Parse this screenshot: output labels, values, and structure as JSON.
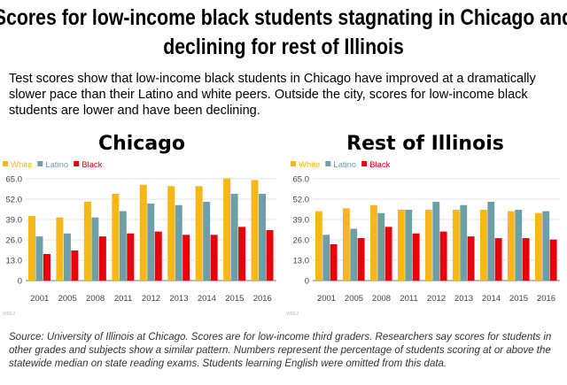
{
  "title": "Scores for low-income black students stagnating in Chicago and declining for rest of Illinois",
  "subtitle": "Test scores show that low-income black students in Chicago have improved at a dramatically slower pace than their Latino and white peers. Outside the city, scores for low-income black students are lower and have been declining.",
  "source": "Source: University of Illinois at Chicago. Scores are for low-income third graders. Researchers say scores for students in other grades and subjects show a similar pattern. Numbers represent the percentage of students scoring at or above the statewide median on state reading exams. Students learning English were omitted from this data.",
  "chart_data": [
    {
      "type": "bar",
      "title": "Chicago",
      "credit": "WBEZ",
      "categories": [
        "2001",
        "2005",
        "2008",
        "2011",
        "2012",
        "2013",
        "2014",
        "2015",
        "2016"
      ],
      "ylim": [
        0,
        65
      ],
      "yticks": [
        "0",
        "13.0",
        "26.0",
        "39.0",
        "52.0",
        "65.0"
      ],
      "grid": true,
      "legend": "top-left",
      "series": [
        {
          "name": "White",
          "color": "#f7b718",
          "values": [
            41.2,
            40.3,
            50.3,
            55.4,
            61.2,
            60.3,
            60.3,
            65.3,
            64.2
          ]
        },
        {
          "name": "Latino",
          "color": "#6e9fa6",
          "values": [
            28.2,
            30.1,
            40.3,
            44.3,
            49.2,
            48.2,
            50.3,
            55.4,
            55.4
          ]
        },
        {
          "name": "Black",
          "color": "#e8000b",
          "values": [
            17.0,
            19.2,
            28.2,
            30.1,
            31.3,
            29.2,
            29.2,
            34.3,
            32.2
          ]
        }
      ]
    },
    {
      "type": "bar",
      "title": "Rest of Illinois",
      "credit": "WBEZ",
      "categories": [
        "2001",
        "2005",
        "2008",
        "2011",
        "2012",
        "2013",
        "2014",
        "2015",
        "2016"
      ],
      "ylim": [
        0,
        65
      ],
      "yticks": [
        "0",
        "13.0",
        "26.0",
        "39.0",
        "52.0",
        "65.0"
      ],
      "grid": true,
      "legend": "top-left",
      "series": [
        {
          "name": "White",
          "color": "#f7b718",
          "values": [
            44.3,
            46.1,
            48.2,
            45.2,
            45.2,
            45.2,
            45.2,
            44.3,
            43.1
          ]
        },
        {
          "name": "Latino",
          "color": "#6e9fa6",
          "values": [
            29.2,
            33.1,
            43.1,
            45.2,
            50.3,
            48.2,
            50.3,
            45.2,
            44.3
          ]
        },
        {
          "name": "Black",
          "color": "#e8000b",
          "values": [
            23.2,
            27.1,
            34.3,
            30.1,
            31.3,
            28.2,
            27.1,
            27.1,
            26.2
          ]
        }
      ]
    }
  ]
}
